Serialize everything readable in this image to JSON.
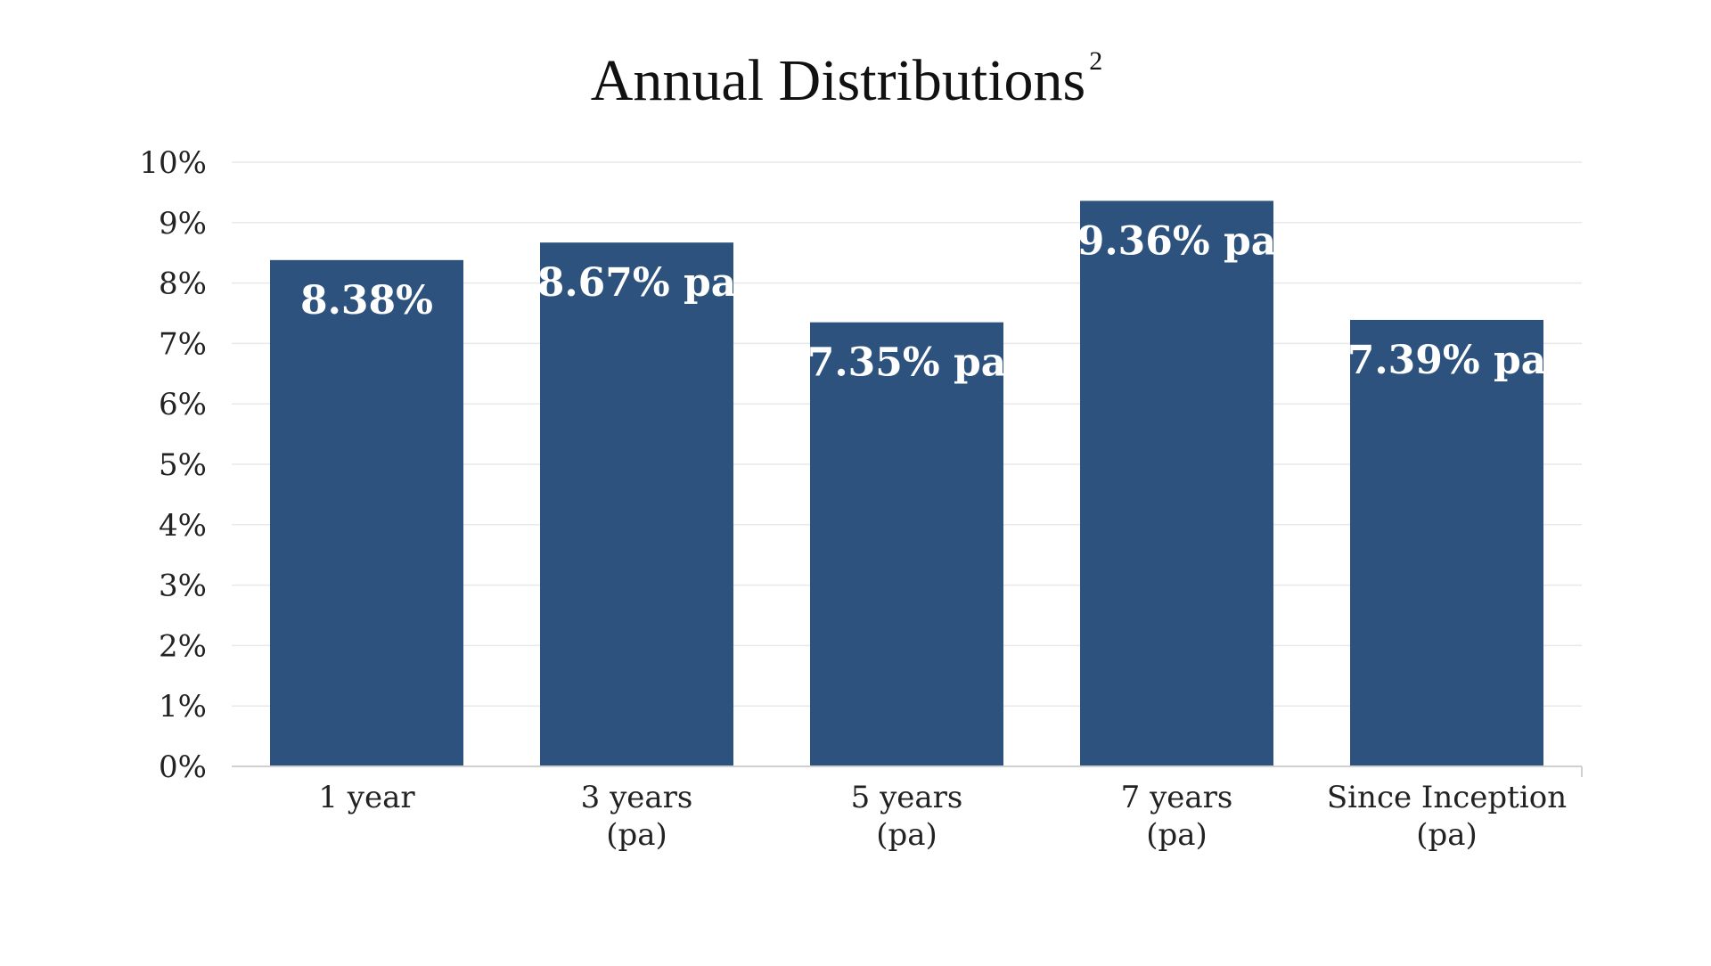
{
  "chart_data": {
    "type": "bar",
    "title": "Annual Distributions",
    "title_superscript": "2",
    "categories": [
      [
        "1 year"
      ],
      [
        "3 years",
        "(pa)"
      ],
      [
        "5 years",
        "(pa)"
      ],
      [
        "7 years",
        "(pa)"
      ],
      [
        "Since Inception",
        "(pa)"
      ]
    ],
    "values": [
      8.38,
      8.67,
      7.35,
      9.36,
      7.39
    ],
    "data_labels": [
      "8.38%",
      "8.67% pa",
      "7.35% pa",
      "9.36% pa",
      "7.39% pa"
    ],
    "yticks": [
      "0%",
      "1%",
      "2%",
      "3%",
      "4%",
      "5%",
      "6%",
      "7%",
      "8%",
      "9%",
      "10%"
    ],
    "ylim": [
      0,
      10
    ],
    "grid": true,
    "legend": "none",
    "colors": {
      "bar": "#2d527d",
      "grid": "#e9e9e9",
      "axis": "#d0d0d0"
    }
  }
}
